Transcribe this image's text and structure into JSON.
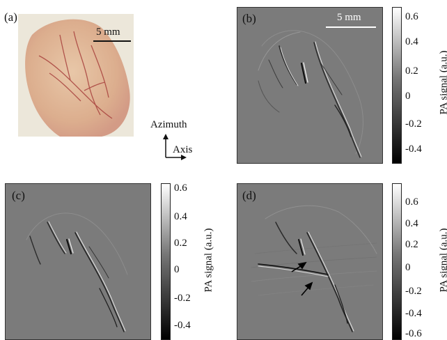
{
  "panels": {
    "a": {
      "label": "(a)",
      "scale_bar": "5 mm"
    },
    "b": {
      "label": "(b)",
      "scale_bar": "5 mm"
    },
    "c": {
      "label": "(c)"
    },
    "d": {
      "label": "(d)"
    }
  },
  "axes_indicator": {
    "vertical": "Azimuth",
    "horizontal": "Axis"
  },
  "colorbars": {
    "b": {
      "label": "PA signal (a.u.)",
      "ticks": [
        "0.6",
        "0.4",
        "0.2",
        "0",
        "-0.2",
        "-0.4"
      ]
    },
    "c": {
      "label": "PA signal (a.u.)",
      "ticks": [
        "0.6",
        "0.4",
        "0.2",
        "0",
        "-0.2",
        "-0.4"
      ]
    },
    "d": {
      "label": "PA signal (a.u.)",
      "ticks": [
        "0.6",
        "0.4",
        "0.2",
        "0",
        "-0.2",
        "-0.4",
        "-0.6"
      ]
    }
  }
}
